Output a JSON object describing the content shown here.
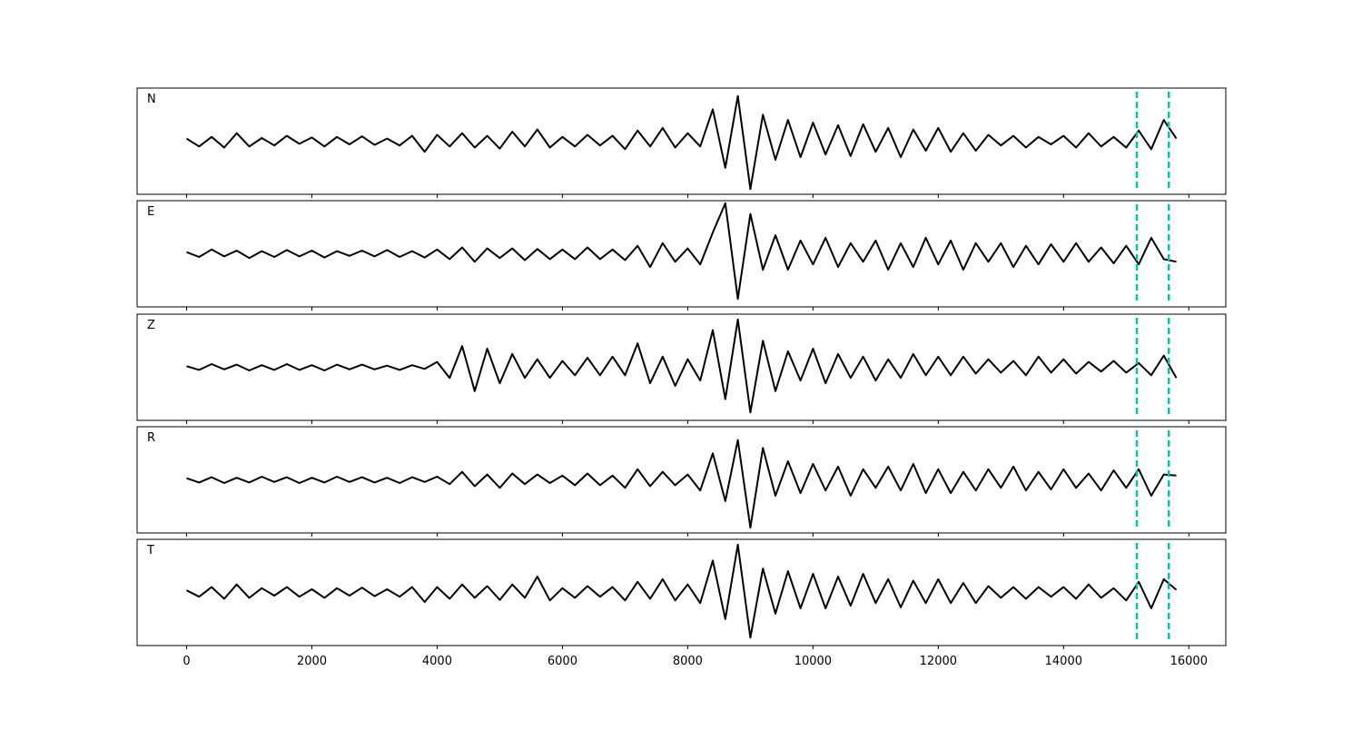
{
  "chart_data": {
    "type": "line",
    "x": [
      0,
      200,
      400,
      600,
      800,
      1000,
      1200,
      1400,
      1600,
      1800,
      2000,
      2200,
      2400,
      2600,
      2800,
      3000,
      3200,
      3400,
      3600,
      3800,
      4000,
      4200,
      4400,
      4600,
      4800,
      5000,
      5200,
      5400,
      5600,
      5800,
      6000,
      6200,
      6400,
      6600,
      6800,
      7000,
      7200,
      7400,
      7600,
      7800,
      8000,
      8200,
      8400,
      8600,
      8800,
      9000,
      9200,
      9400,
      9600,
      9800,
      10000,
      10200,
      10400,
      10600,
      10800,
      11000,
      11200,
      11400,
      11600,
      11800,
      12000,
      12200,
      12400,
      12600,
      12800,
      13000,
      13200,
      13400,
      13600,
      13800,
      14000,
      14200,
      14400,
      14600,
      14800,
      15000,
      15200,
      15400,
      15600,
      15800
    ],
    "xlim": [
      -790,
      16590
    ],
    "xticks": [
      0,
      2000,
      4000,
      6000,
      8000,
      10000,
      12000,
      14000,
      16000
    ],
    "ylim": [
      -1,
      1
    ],
    "vlines": [
      15170,
      15680
    ],
    "vline_color": "#00c4ad",
    "series": [
      {
        "name": "N",
        "color": "#000000",
        "values": [
          0.05,
          -0.1,
          0.08,
          -0.12,
          0.15,
          -0.1,
          0.06,
          -0.08,
          0.1,
          -0.05,
          0.07,
          -0.1,
          0.08,
          -0.06,
          0.09,
          -0.07,
          0.05,
          -0.08,
          0.1,
          -0.2,
          0.12,
          -0.1,
          0.15,
          -0.12,
          0.1,
          -0.14,
          0.18,
          -0.1,
          0.22,
          -0.12,
          0.08,
          -0.1,
          0.12,
          -0.08,
          0.1,
          -0.15,
          0.2,
          -0.1,
          0.25,
          -0.12,
          0.15,
          -0.1,
          0.6,
          -0.5,
          0.85,
          -0.9,
          0.5,
          -0.35,
          0.4,
          -0.3,
          0.35,
          -0.25,
          0.3,
          -0.28,
          0.32,
          -0.2,
          0.25,
          -0.3,
          0.22,
          -0.18,
          0.25,
          -0.2,
          0.15,
          -0.18,
          0.12,
          -0.08,
          0.1,
          -0.12,
          0.08,
          -0.06,
          0.1,
          -0.12,
          0.15,
          -0.1,
          0.08,
          -0.12,
          0.2,
          -0.15,
          0.4,
          0.05
        ]
      },
      {
        "name": "E",
        "color": "#000000",
        "values": [
          0.03,
          -0.06,
          0.08,
          -0.05,
          0.06,
          -0.08,
          0.05,
          -0.06,
          0.07,
          -0.05,
          0.06,
          -0.07,
          0.05,
          -0.04,
          0.06,
          -0.05,
          0.07,
          -0.06,
          0.05,
          -0.07,
          0.08,
          -0.1,
          0.12,
          -0.15,
          0.1,
          -0.08,
          0.1,
          -0.12,
          0.09,
          -0.1,
          0.08,
          -0.1,
          0.12,
          -0.1,
          0.08,
          -0.12,
          0.15,
          -0.25,
          0.2,
          -0.15,
          0.1,
          -0.2,
          0.4,
          0.95,
          -0.85,
          0.75,
          -0.3,
          0.35,
          -0.3,
          0.25,
          -0.2,
          0.3,
          -0.25,
          0.2,
          -0.15,
          0.25,
          -0.3,
          0.2,
          -0.25,
          0.3,
          -0.2,
          0.25,
          -0.3,
          0.2,
          -0.15,
          0.2,
          -0.25,
          0.15,
          -0.2,
          0.18,
          -0.15,
          0.2,
          -0.15,
          0.12,
          -0.18,
          0.15,
          -0.2,
          0.3,
          -0.1,
          -0.15
        ]
      },
      {
        "name": "Z",
        "color": "#000000",
        "values": [
          0.02,
          -0.05,
          0.06,
          -0.04,
          0.05,
          -0.06,
          0.04,
          -0.05,
          0.06,
          -0.05,
          0.04,
          -0.06,
          0.05,
          -0.04,
          0.05,
          -0.04,
          0.03,
          -0.05,
          0.04,
          -0.03,
          0.1,
          -0.2,
          0.4,
          -0.45,
          0.35,
          -0.3,
          0.25,
          -0.2,
          0.15,
          -0.2,
          0.12,
          -0.15,
          0.18,
          -0.15,
          0.2,
          -0.15,
          0.45,
          -0.3,
          0.2,
          -0.35,
          0.15,
          -0.25,
          0.7,
          -0.6,
          0.9,
          -0.85,
          0.5,
          -0.45,
          0.3,
          -0.25,
          0.35,
          -0.3,
          0.25,
          -0.2,
          0.2,
          -0.25,
          0.15,
          -0.2,
          0.25,
          -0.15,
          0.2,
          -0.15,
          0.2,
          -0.12,
          0.15,
          -0.1,
          0.12,
          -0.15,
          0.2,
          -0.1,
          0.15,
          -0.12,
          0.1,
          -0.08,
          0.12,
          -0.1,
          0.08,
          -0.15,
          0.22,
          -0.2
        ]
      },
      {
        "name": "R",
        "color": "#000000",
        "values": [
          0.03,
          -0.05,
          0.05,
          -0.06,
          0.04,
          -0.05,
          0.06,
          -0.04,
          0.05,
          -0.06,
          0.04,
          -0.05,
          0.06,
          -0.04,
          0.05,
          -0.05,
          0.04,
          -0.06,
          0.05,
          -0.04,
          0.06,
          -0.08,
          0.15,
          -0.12,
          0.1,
          -0.15,
          0.12,
          -0.08,
          0.1,
          -0.06,
          0.08,
          -0.1,
          0.12,
          -0.1,
          0.08,
          -0.15,
          0.2,
          -0.12,
          0.15,
          -0.1,
          0.1,
          -0.2,
          0.5,
          -0.4,
          0.75,
          -0.9,
          0.6,
          -0.3,
          0.35,
          -0.25,
          0.3,
          -0.2,
          0.25,
          -0.3,
          0.2,
          -0.15,
          0.25,
          -0.2,
          0.3,
          -0.25,
          0.2,
          -0.25,
          0.15,
          -0.2,
          0.2,
          -0.15,
          0.25,
          -0.2,
          0.15,
          -0.18,
          0.2,
          -0.15,
          0.12,
          -0.2,
          0.18,
          -0.15,
          0.2,
          -0.3,
          0.1,
          0.08
        ]
      },
      {
        "name": "T",
        "color": "#000000",
        "values": [
          0.04,
          -0.08,
          0.1,
          -0.12,
          0.15,
          -0.1,
          0.08,
          -0.06,
          0.1,
          -0.08,
          0.06,
          -0.1,
          0.08,
          -0.06,
          0.09,
          -0.07,
          0.06,
          -0.08,
          0.1,
          -0.18,
          0.1,
          -0.12,
          0.15,
          -0.1,
          0.12,
          -0.14,
          0.15,
          -0.1,
          0.3,
          -0.15,
          0.08,
          -0.1,
          0.12,
          -0.08,
          0.1,
          -0.15,
          0.2,
          -0.12,
          0.25,
          -0.15,
          0.15,
          -0.2,
          0.6,
          -0.5,
          0.9,
          -0.85,
          0.45,
          -0.4,
          0.4,
          -0.3,
          0.35,
          -0.3,
          0.3,
          -0.25,
          0.35,
          -0.2,
          0.25,
          -0.28,
          0.22,
          -0.2,
          0.25,
          -0.2,
          0.18,
          -0.2,
          0.12,
          -0.1,
          0.1,
          -0.12,
          0.1,
          -0.08,
          0.1,
          -0.12,
          0.15,
          -0.1,
          0.08,
          -0.15,
          0.2,
          -0.3,
          0.25,
          0.05
        ]
      }
    ]
  }
}
